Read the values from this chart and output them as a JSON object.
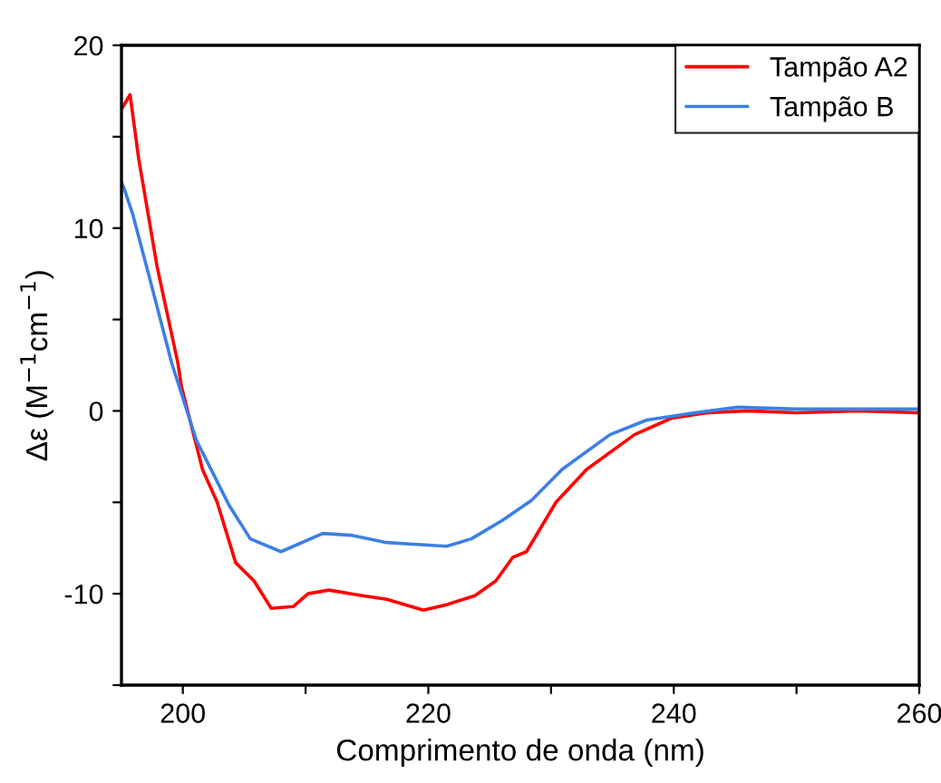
{
  "chart_data": {
    "type": "line",
    "xlabel": "Comprimento de onda (nm)",
    "ylabel": "Δε (M$^{−1}$cm$^{−1}$)",
    "xlim": [
      195,
      260
    ],
    "xticks": [
      200,
      {
        "value": 210,
        "label": null
      },
      220,
      {
        "value": 230,
        "label": null
      },
      240,
      {
        "value": 250,
        "label": null
      },
      260
    ],
    "ylim": [
      -15,
      20
    ],
    "yticks": [
      {
        "value": -15,
        "label": null
      },
      -10,
      {
        "value": -5,
        "label": null
      },
      0,
      {
        "value": 5,
        "label": null
      },
      10,
      {
        "value": 15,
        "label": null
      },
      20
    ],
    "grid": false,
    "legend": "top right",
    "marker": "none",
    "line_style": "solid",
    "series": [
      {
        "name": "Tampão A2",
        "color": "#ff0000",
        "x": [
          195,
          195.7,
          196.4,
          197.9,
          199.6,
          199.9,
          201.6,
          202.8,
          204.3,
          205.8,
          207.2,
          209.0,
          210.2,
          211.9,
          214.6,
          216.6,
          219.6,
          221.5,
          223.8,
          225.5,
          226.9,
          228.0,
          230.4,
          232.9,
          236.8,
          239.8,
          242.7,
          246,
          250,
          255,
          260
        ],
        "values": [
          16.5,
          17.3,
          13.8,
          7.9,
          2.6,
          1.3,
          -3.2,
          -5.0,
          -8.3,
          -9.3,
          -10.8,
          -10.7,
          -10.0,
          -9.8,
          -10.1,
          -10.3,
          -10.9,
          -10.6,
          -10.1,
          -9.3,
          -8.0,
          -7.7,
          -5.0,
          -3.2,
          -1.3,
          -0.4,
          -0.1,
          0,
          -0.1,
          0,
          -0.1
        ]
      },
      {
        "name": "Tampão B",
        "color": "#3c7fe6",
        "x": [
          195,
          195.2,
          195.9,
          197.2,
          199.1,
          201.1,
          203.8,
          205.5,
          208.0,
          211.4,
          213.7,
          216.6,
          219.1,
          221.5,
          223.5,
          226.0,
          228.4,
          230.9,
          234.8,
          237.8,
          241.7,
          245.2,
          250,
          255,
          260
        ],
        "values": [
          12.5,
          12.2,
          10.8,
          7.5,
          2.6,
          -1.6,
          -5.2,
          -7.0,
          -7.7,
          -6.7,
          -6.8,
          -7.2,
          -7.3,
          -7.4,
          -7.0,
          -6.0,
          -4.9,
          -3.2,
          -1.3,
          -0.5,
          -0.1,
          0.2,
          0.1,
          0.1,
          0.1
        ]
      }
    ]
  }
}
